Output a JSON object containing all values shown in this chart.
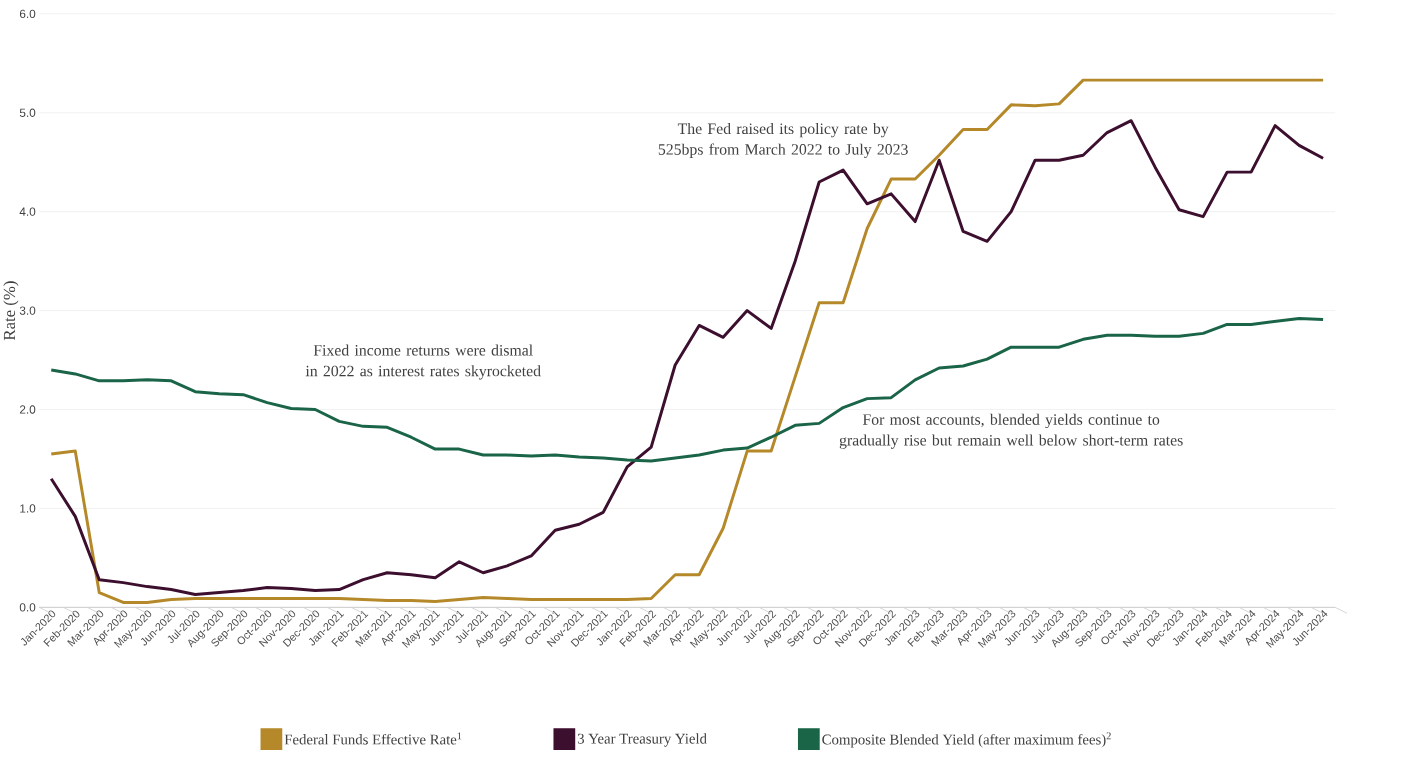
{
  "chart_data": {
    "type": "line",
    "ylabel": "Rate (%)",
    "categories": [
      "Jan-2020",
      "Feb-2020",
      "Mar-2020",
      "Apr-2020",
      "May-2020",
      "Jun-2020",
      "Jul-2020",
      "Aug-2020",
      "Sep-2020",
      "Oct-2020",
      "Nov-2020",
      "Dec-2020",
      "Jan-2021",
      "Feb-2021",
      "Mar-2021",
      "Apr-2021",
      "May-2021",
      "Jun-2021",
      "Jul-2021",
      "Aug-2021",
      "Sep-2021",
      "Oct-2021",
      "Nov-2021",
      "Dec-2021",
      "Jan-2022",
      "Feb-2022",
      "Mar-2022",
      "Apr-2022",
      "May-2022",
      "Jun-2022",
      "Jul-2022",
      "Aug-2022",
      "Sep-2022",
      "Oct-2022",
      "Nov-2022",
      "Dec-2022",
      "Jan-2023",
      "Feb-2023",
      "Mar-2023",
      "Apr-2023",
      "May-2023",
      "Jun-2023",
      "Jul-2023",
      "Aug-2023",
      "Sep-2023",
      "Oct-2023",
      "Nov-2023",
      "Dec-2023",
      "Jan-2024",
      "Feb-2024",
      "Mar-2024",
      "Apr-2024",
      "May-2024",
      "Jun-2024"
    ],
    "series": [
      {
        "name": "Federal Funds Effective Rate$^{1}$",
        "color": "#b5892a",
        "values": [
          1.55,
          1.58,
          0.15,
          0.05,
          0.05,
          0.08,
          0.09,
          0.09,
          0.09,
          0.09,
          0.09,
          0.09,
          0.09,
          0.08,
          0.07,
          0.07,
          0.06,
          0.08,
          0.1,
          0.09,
          0.08,
          0.08,
          0.08,
          0.08,
          0.08,
          0.09,
          0.33,
          0.33,
          0.8,
          1.58,
          1.58,
          2.33,
          3.08,
          3.08,
          3.83,
          4.33,
          4.33,
          4.57,
          4.83,
          4.83,
          5.08,
          5.07,
          5.09,
          5.33,
          5.33,
          5.33,
          5.33,
          5.33,
          5.33,
          5.33,
          5.33,
          5.33,
          5.33,
          5.33
        ]
      },
      {
        "name": "3 Year Treasury Yield",
        "color": "#3d0f2f",
        "values": [
          1.3,
          0.92,
          0.28,
          0.25,
          0.21,
          0.18,
          0.13,
          0.15,
          0.17,
          0.2,
          0.19,
          0.17,
          0.18,
          0.28,
          0.35,
          0.33,
          0.3,
          0.46,
          0.35,
          0.42,
          0.52,
          0.78,
          0.84,
          0.96,
          1.42,
          1.62,
          2.45,
          2.85,
          2.73,
          3.0,
          2.82,
          3.5,
          4.3,
          4.42,
          4.08,
          4.18,
          3.9,
          4.52,
          3.8,
          3.7,
          4.0,
          4.52,
          4.52,
          4.57,
          4.8,
          4.92,
          4.45,
          4.02,
          3.95,
          4.4,
          4.4,
          4.87,
          4.67,
          4.54
        ]
      },
      {
        "name": "Composite Blended Yield (after maximum fees)$^{2}$",
        "color": "#1a6448",
        "values": [
          2.4,
          2.36,
          2.29,
          2.29,
          2.3,
          2.29,
          2.18,
          2.16,
          2.15,
          2.07,
          2.01,
          2.0,
          1.88,
          1.83,
          1.82,
          1.72,
          1.6,
          1.6,
          1.54,
          1.54,
          1.53,
          1.54,
          1.52,
          1.51,
          1.49,
          1.48,
          1.51,
          1.54,
          1.59,
          1.61,
          1.72,
          1.84,
          1.86,
          2.02,
          2.11,
          2.12,
          2.3,
          2.42,
          2.44,
          2.51,
          2.63,
          2.63,
          2.63,
          2.71,
          2.75,
          2.75,
          2.74,
          2.74,
          2.77,
          2.86,
          2.86,
          2.89,
          2.92,
          2.91
        ]
      }
    ],
    "ylim": [
      0,
      6
    ],
    "yticks": [
      {
        "value": 0,
        "label": "0.0"
      },
      {
        "value": 1,
        "label": "1.0"
      },
      {
        "value": 2,
        "label": "2.0"
      },
      {
        "value": 3,
        "label": "3.0"
      },
      {
        "value": 4,
        "label": "4.0"
      },
      {
        "value": 5,
        "label": "5.0"
      },
      {
        "value": 6,
        "label": "6.0"
      }
    ],
    "grid": "y",
    "legend": "bottom",
    "marker": "none",
    "line_style": "solid",
    "annotations": [
      "The Fed raised its policy rate by 525bps from March 2022 to July 2023",
      "Fixed income returns were dismal in 2022 as interest rates skyrocketed",
      "For most accounts, blended yields continue to gradually rise but remain well below short-term rates"
    ]
  }
}
